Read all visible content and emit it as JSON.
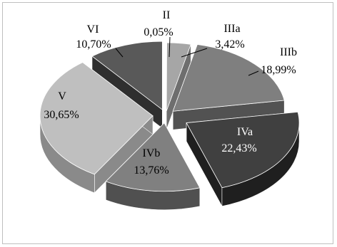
{
  "chart_data": {
    "type": "pie",
    "title": "",
    "categories": [
      "II",
      "IIIa",
      "IIIb",
      "IVa",
      "IVb",
      "V",
      "VI"
    ],
    "values": [
      0.05,
      3.42,
      18.99,
      22.43,
      13.76,
      30.65,
      10.7
    ],
    "value_labels": [
      "0,05%",
      "3,42%",
      "18,99%",
      "22,43%",
      "13,76%",
      "30,65%",
      "10,70%"
    ],
    "legend": "none",
    "style": "3d-exploded",
    "colors": [
      "#d9d9d9",
      "#a6a6a6",
      "#7f7f7f",
      "#404040",
      "#808080",
      "#bfbfbf",
      "#595959"
    ],
    "side_colors": [
      "#9e9e9e",
      "#6e6e6e",
      "#525252",
      "#1f1f1f",
      "#505050",
      "#8a8a8a",
      "#2f2f2f"
    ]
  }
}
